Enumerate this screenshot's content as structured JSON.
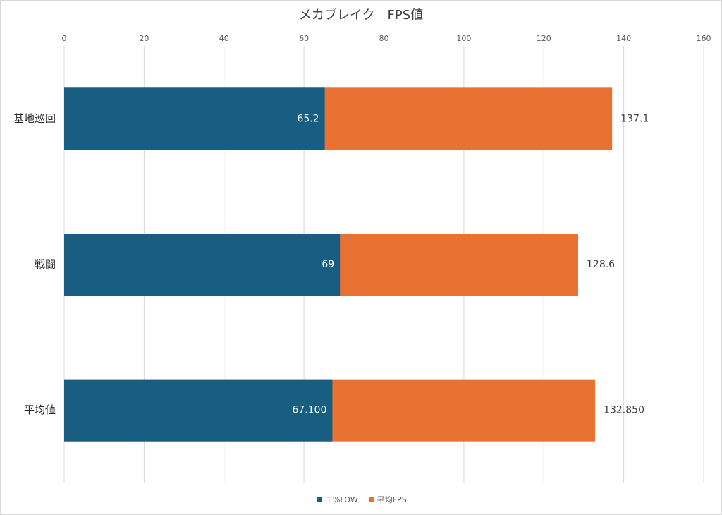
{
  "chart_data": {
    "type": "bar",
    "orientation": "horizontal",
    "title": "メカブレイク　FPS値",
    "categories": [
      "基地巡回",
      "戦闘",
      "平均値"
    ],
    "series": [
      {
        "name": "平均FPS",
        "color": "#e97132",
        "values": [
          137.1,
          128.6,
          132.85
        ],
        "value_labels": [
          "137.1",
          "128.6",
          "132.850"
        ]
      },
      {
        "name": "１%LOW",
        "color": "#175e82",
        "values": [
          65.2,
          69,
          67.1
        ],
        "value_labels": [
          "65.2",
          "69",
          "67.100"
        ]
      }
    ],
    "xlim": [
      0,
      160
    ],
    "xticks": [
      0,
      20,
      40,
      60,
      80,
      100,
      120,
      140,
      160
    ],
    "grid": true,
    "legend": "bottom"
  }
}
